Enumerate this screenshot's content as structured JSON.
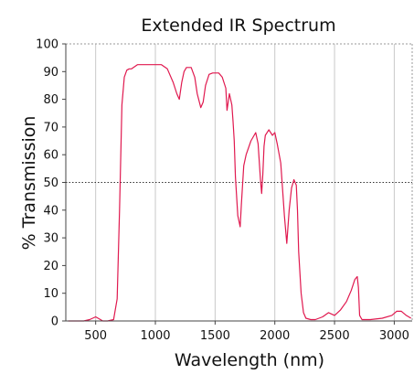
{
  "chart_data": {
    "type": "line",
    "title": "Extended IR Spectrum",
    "xlabel": "Wavelength (nm)",
    "ylabel": "% Transmission",
    "xlim": [
      250,
      3150
    ],
    "ylim": [
      0,
      100
    ],
    "x_ticks": [
      500,
      1000,
      1500,
      2000,
      2500,
      3000
    ],
    "y_ticks": [
      0,
      10,
      20,
      30,
      40,
      50,
      60,
      70,
      80,
      90,
      100
    ],
    "grid": {
      "vertical": true,
      "horizontal": false
    },
    "reference_line": {
      "y": 50,
      "style": "dotted"
    },
    "colors": {
      "curve": "#e0194f",
      "grid": "#c8c8c8",
      "axis": "#444444",
      "reference": "#333333"
    },
    "series": [
      {
        "x": [
          270,
          400,
          450,
          500,
          520,
          560,
          600,
          650,
          680,
          700,
          720,
          740,
          760,
          780,
          800,
          850,
          900,
          950,
          1000,
          1050,
          1100,
          1150,
          1180,
          1200,
          1220,
          1240,
          1260,
          1300,
          1330,
          1350,
          1380,
          1400,
          1420,
          1450,
          1480,
          1500,
          1530,
          1560,
          1590,
          1600,
          1620,
          1640,
          1650,
          1660,
          1670,
          1690,
          1710,
          1720,
          1740,
          1760,
          1800,
          1840,
          1860,
          1880,
          1890,
          1900,
          1910,
          1920,
          1950,
          1980,
          2000,
          2020,
          2050,
          2080,
          2100,
          2120,
          2140,
          2160,
          2180,
          2190,
          2200,
          2220,
          2240,
          2260,
          2300,
          2340,
          2400,
          2450,
          2500,
          2550,
          2600,
          2640,
          2670,
          2690,
          2700,
          2710,
          2730,
          2800,
          2900,
          2980,
          3020,
          3060,
          3100,
          3140
        ],
        "y": [
          0,
          0,
          0.5,
          1.5,
          1,
          0,
          0,
          0.5,
          8,
          40,
          78,
          88,
          90.5,
          91,
          91,
          92.5,
          92.5,
          92.5,
          92.5,
          92.5,
          91,
          86,
          82,
          80,
          86,
          90,
          91.5,
          91.5,
          88,
          82,
          77,
          79,
          85,
          89,
          89.5,
          89.5,
          89.5,
          88,
          84,
          76,
          82,
          78,
          72,
          65,
          52,
          38,
          34,
          42,
          56,
          60,
          65,
          68,
          64,
          51,
          46,
          53,
          63,
          67,
          69,
          67,
          68,
          64,
          57,
          38,
          28,
          40,
          48,
          51,
          49,
          40,
          25,
          10,
          3,
          1,
          0.5,
          0.5,
          1.5,
          3,
          2,
          4,
          7,
          11,
          15,
          16,
          12,
          2,
          0.5,
          0.5,
          1,
          2,
          3.5,
          3.5,
          2,
          1
        ]
      }
    ]
  }
}
